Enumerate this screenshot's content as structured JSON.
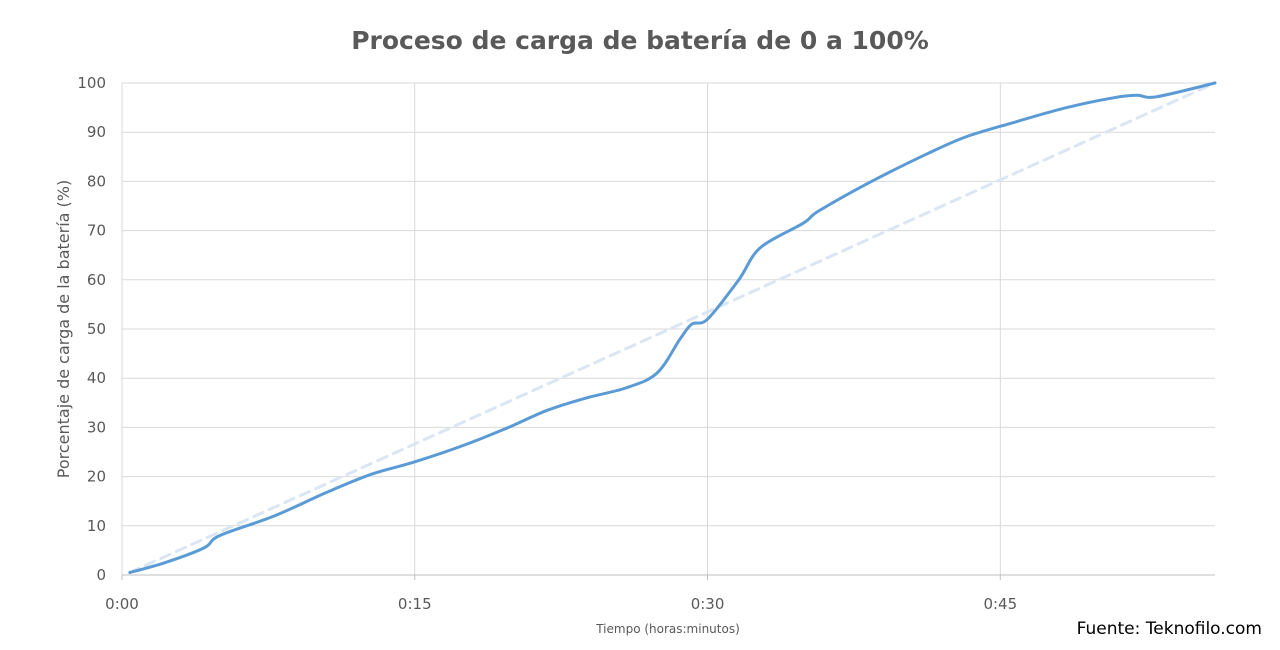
{
  "chart_data": {
    "type": "line",
    "title": "Proceso de carga de batería de 0 a 100%",
    "xlabel": "Tiempo (horas:minutos)",
    "ylabel": "Porcentaje de carga de la batería (%)",
    "x_unit": "minutes",
    "xlim": [
      0,
      56
    ],
    "ylim": [
      0,
      100
    ],
    "x_ticks": [
      {
        "value": 0,
        "label": "0:00"
      },
      {
        "value": 15,
        "label": "0:15"
      },
      {
        "value": 30,
        "label": "0:30"
      },
      {
        "value": 45,
        "label": "0:45"
      }
    ],
    "y_ticks": [
      0,
      10,
      20,
      30,
      40,
      50,
      60,
      70,
      80,
      90,
      100
    ],
    "grid": true,
    "series": [
      {
        "style": "solid",
        "color": "#5b9bd5",
        "x": [
          0.4,
          2.2,
          4.2,
          5.0,
          7.8,
          10.6,
          12.8,
          15.0,
          17.6,
          19.8,
          21.8,
          23.8,
          25.8,
          27.4,
          28.6,
          29.2,
          30.0,
          31.6,
          32.7,
          34.9,
          35.7,
          38.4,
          41.2,
          43.2,
          45.7,
          48.4,
          50.8,
          52.0,
          53.0,
          56.0
        ],
        "y": [
          0.5,
          2.5,
          5.5,
          8.0,
          12.0,
          17.0,
          20.5,
          23.0,
          26.5,
          30.0,
          33.5,
          36.0,
          38.0,
          41.0,
          48.0,
          51.0,
          52.0,
          60.0,
          66.5,
          71.5,
          74.0,
          80.0,
          85.5,
          89.0,
          92.0,
          95.0,
          97.0,
          97.5,
          97.2,
          100.0
        ]
      },
      {
        "style": "dashed",
        "color": "#dae6f4",
        "x": [
          0.4,
          56.0
        ],
        "y": [
          0.5,
          100.0
        ]
      }
    ]
  },
  "source": "Fuente: Teknofilo.com"
}
